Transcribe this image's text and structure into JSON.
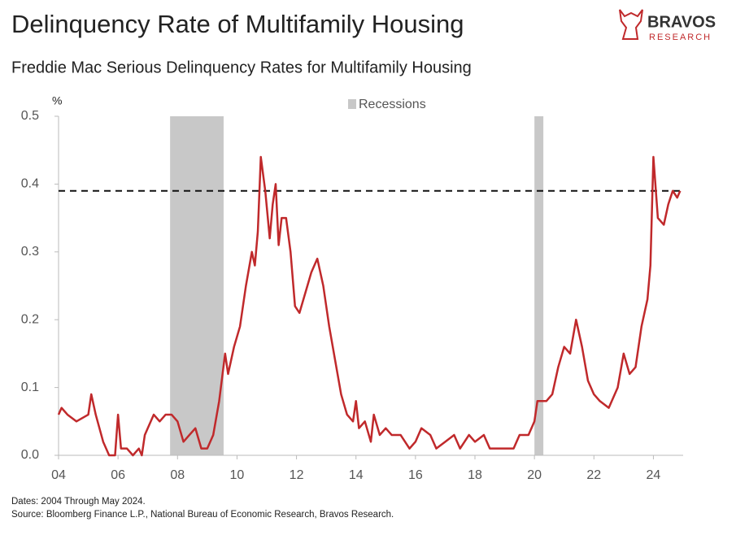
{
  "chart_data": {
    "type": "line",
    "title": "Delinquency Rate of Multifamily Housing",
    "subtitle": "Freddie Mac Serious Delinquency Rates for Multifamily Housing",
    "y_unit": "%",
    "xlim": [
      2004,
      2025
    ],
    "xticks": [
      {
        "value": 2004,
        "label": "04"
      },
      {
        "value": 2006,
        "label": "06"
      },
      {
        "value": 2008,
        "label": "08"
      },
      {
        "value": 2010,
        "label": "10"
      },
      {
        "value": 2012,
        "label": "12"
      },
      {
        "value": 2014,
        "label": "14"
      },
      {
        "value": 2016,
        "label": "16"
      },
      {
        "value": 2018,
        "label": "18"
      },
      {
        "value": 2020,
        "label": "20"
      },
      {
        "value": 2022,
        "label": "22"
      },
      {
        "value": 2024,
        "label": "24"
      }
    ],
    "ylim": [
      0,
      0.5
    ],
    "yticks": [
      {
        "value": 0,
        "label": "0.0"
      },
      0.1,
      0.2,
      0.3,
      0.4,
      0.5
    ],
    "grid": false,
    "series": [
      {
        "color": "#c0292b",
        "x": [
          2004.0,
          2004.1,
          2004.3,
          2004.6,
          2005.0,
          2005.1,
          2005.25,
          2005.5,
          2005.7,
          2005.9,
          2006.0,
          2006.1,
          2006.3,
          2006.5,
          2006.7,
          2006.8,
          2006.9,
          2007.0,
          2007.2,
          2007.4,
          2007.6,
          2007.8,
          2008.0,
          2008.2,
          2008.4,
          2008.6,
          2008.8,
          2009.0,
          2009.2,
          2009.4,
          2009.6,
          2009.7,
          2009.9,
          2010.1,
          2010.3,
          2010.5,
          2010.6,
          2010.7,
          2010.8,
          2010.95,
          2011.1,
          2011.2,
          2011.3,
          2011.4,
          2011.5,
          2011.65,
          2011.8,
          2011.95,
          2012.1,
          2012.3,
          2012.5,
          2012.7,
          2012.9,
          2013.1,
          2013.3,
          2013.5,
          2013.7,
          2013.9,
          2014.0,
          2014.1,
          2014.3,
          2014.5,
          2014.6,
          2014.8,
          2015.0,
          2015.2,
          2015.5,
          2015.8,
          2016.0,
          2016.2,
          2016.5,
          2016.7,
          2017.0,
          2017.3,
          2017.5,
          2017.8,
          2018.0,
          2018.3,
          2018.5,
          2018.8,
          2019.0,
          2019.3,
          2019.5,
          2019.8,
          2020.0,
          2020.1,
          2020.4,
          2020.6,
          2020.8,
          2021.0,
          2021.2,
          2021.4,
          2021.6,
          2021.8,
          2022.0,
          2022.2,
          2022.5,
          2022.8,
          2023.0,
          2023.2,
          2023.4,
          2023.6,
          2023.8,
          2023.9,
          2024.0,
          2024.15,
          2024.35,
          2024.5,
          2024.65,
          2024.8,
          2024.9
        ],
        "values": [
          0.06,
          0.07,
          0.06,
          0.05,
          0.06,
          0.09,
          0.06,
          0.02,
          0.0,
          0.0,
          0.06,
          0.01,
          0.01,
          0.0,
          0.01,
          0.0,
          0.03,
          0.04,
          0.06,
          0.05,
          0.06,
          0.06,
          0.05,
          0.02,
          0.03,
          0.04,
          0.01,
          0.01,
          0.03,
          0.08,
          0.15,
          0.12,
          0.16,
          0.19,
          0.25,
          0.3,
          0.28,
          0.33,
          0.44,
          0.39,
          0.32,
          0.37,
          0.4,
          0.31,
          0.35,
          0.35,
          0.3,
          0.22,
          0.21,
          0.24,
          0.27,
          0.29,
          0.25,
          0.19,
          0.14,
          0.09,
          0.06,
          0.05,
          0.08,
          0.04,
          0.05,
          0.02,
          0.06,
          0.03,
          0.04,
          0.03,
          0.03,
          0.01,
          0.02,
          0.04,
          0.03,
          0.01,
          0.02,
          0.03,
          0.01,
          0.03,
          0.02,
          0.03,
          0.01,
          0.01,
          0.01,
          0.01,
          0.03,
          0.03,
          0.05,
          0.08,
          0.08,
          0.09,
          0.13,
          0.16,
          0.15,
          0.2,
          0.16,
          0.11,
          0.09,
          0.08,
          0.07,
          0.1,
          0.15,
          0.12,
          0.13,
          0.19,
          0.23,
          0.28,
          0.44,
          0.35,
          0.34,
          0.37,
          0.39,
          0.38,
          0.39
        ]
      }
    ],
    "recessions": {
      "label": "Recessions",
      "color": "#c8c8c8",
      "spans": [
        [
          2007.75,
          2009.55
        ],
        [
          2020.0,
          2020.3
        ]
      ]
    },
    "reference_line": {
      "value": 0.39,
      "style": "dashed",
      "color": "#111111"
    },
    "notes": [
      "Dates: 2004 Through May 2024.",
      "Source: Bloomberg Finance L.P., National Bureau of Economic Research, Bravos Research."
    ]
  },
  "logo": {
    "name": "BRAVOS",
    "tagline": "RESEARCH"
  }
}
